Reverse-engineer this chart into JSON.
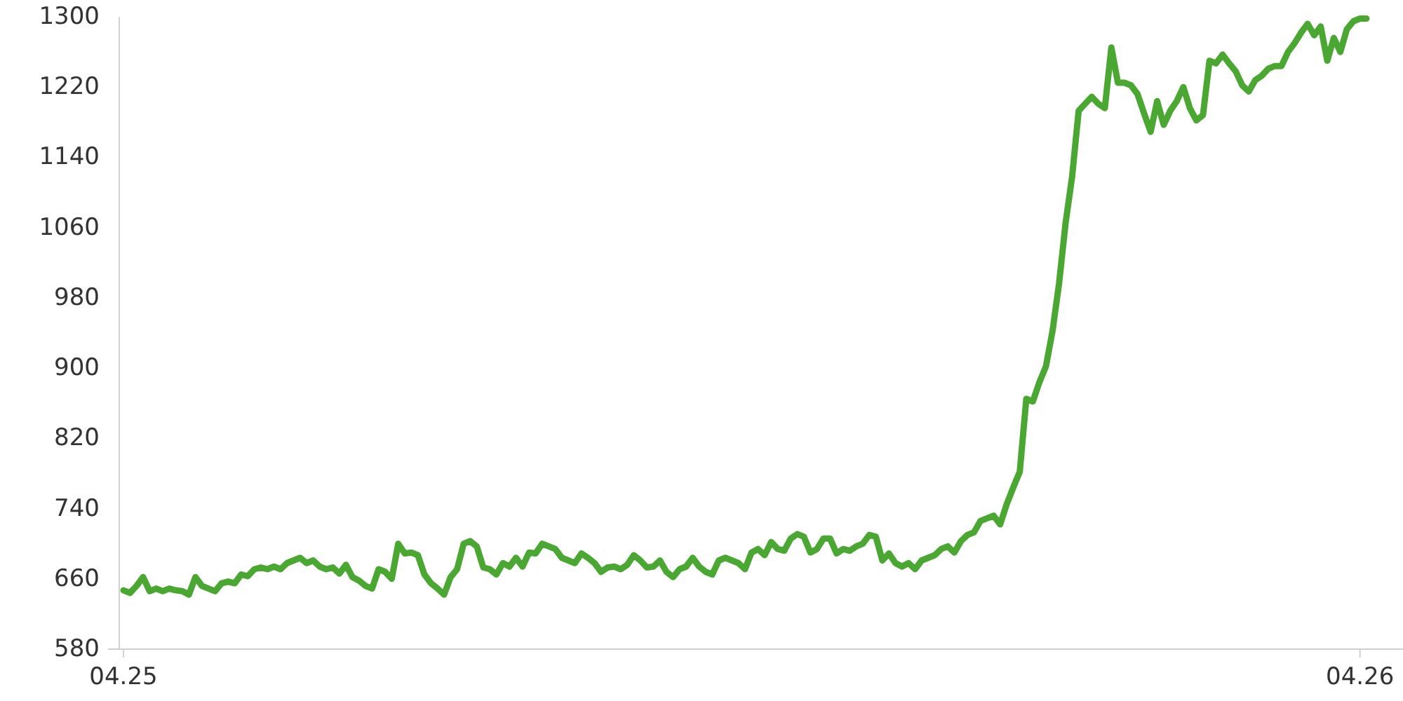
{
  "chart_data": {
    "type": "line",
    "ylim": [
      580,
      1300
    ],
    "yticks": [
      580,
      660,
      740,
      820,
      900,
      980,
      1060,
      1140,
      1220,
      1300
    ],
    "grid": false,
    "marker": "none",
    "line_style": "solid",
    "categories": [
      "04.25",
      null,
      null,
      null,
      null,
      null,
      null,
      null,
      null,
      null,
      null,
      null,
      null,
      null,
      null,
      null,
      null,
      null,
      null,
      null,
      null,
      null,
      null,
      null,
      null,
      null,
      null,
      null,
      null,
      null,
      null,
      null,
      null,
      null,
      null,
      null,
      null,
      null,
      null,
      null,
      null,
      null,
      null,
      null,
      null,
      null,
      null,
      null,
      null,
      null,
      null,
      null,
      null,
      null,
      null,
      null,
      null,
      null,
      null,
      null,
      null,
      null,
      null,
      null,
      null,
      null,
      null,
      null,
      null,
      null,
      null,
      null,
      null,
      null,
      null,
      null,
      null,
      null,
      null,
      null,
      null,
      null,
      null,
      null,
      null,
      null,
      null,
      null,
      null,
      null,
      null,
      null,
      null,
      null,
      null,
      null,
      null,
      null,
      null,
      null,
      null,
      null,
      null,
      null,
      null,
      null,
      null,
      null,
      null,
      null,
      null,
      null,
      null,
      null,
      null,
      null,
      null,
      null,
      null,
      null,
      null,
      null,
      null,
      null,
      null,
      null,
      null,
      null,
      null,
      null,
      null,
      null,
      null,
      null,
      null,
      null,
      null,
      null,
      null,
      null,
      null,
      null,
      null,
      null,
      null,
      null,
      null,
      null,
      null,
      null,
      null,
      null,
      null,
      null,
      null,
      null,
      null,
      null,
      null,
      null,
      null,
      null,
      null,
      null,
      null,
      null,
      null,
      null,
      null,
      null,
      null,
      null,
      null,
      null,
      null,
      null,
      null,
      null,
      null,
      null,
      null,
      null,
      null,
      null,
      null,
      null,
      null,
      null,
      null,
      "04.26",
      null
    ],
    "series": [
      {
        "color": "#4aa832",
        "values": [
          647,
          644,
          652,
          662,
          646,
          649,
          646,
          649,
          647,
          646,
          642,
          662,
          652,
          649,
          646,
          655,
          657,
          655,
          665,
          663,
          671,
          673,
          671,
          674,
          671,
          678,
          681,
          684,
          678,
          681,
          674,
          671,
          673,
          666,
          676,
          662,
          658,
          652,
          649,
          671,
          668,
          660,
          700,
          689,
          690,
          687,
          665,
          655,
          649,
          642,
          662,
          671,
          700,
          703,
          697,
          673,
          671,
          665,
          678,
          674,
          684,
          674,
          690,
          689,
          700,
          697,
          694,
          684,
          681,
          678,
          689,
          684,
          678,
          668,
          673,
          674,
          671,
          676,
          687,
          681,
          673,
          674,
          681,
          668,
          662,
          671,
          674,
          684,
          674,
          668,
          665,
          681,
          684,
          681,
          678,
          671,
          690,
          694,
          687,
          702,
          694,
          692,
          706,
          711,
          708,
          690,
          694,
          706,
          706,
          689,
          694,
          692,
          697,
          700,
          710,
          708,
          681,
          689,
          678,
          674,
          678,
          671,
          681,
          684,
          687,
          694,
          697,
          690,
          703,
          710,
          713,
          726,
          729,
          732,
          722,
          745,
          764,
          782,
          865,
          862,
          884,
          902,
          942,
          996,
          1065,
          1118,
          1193,
          1201,
          1209,
          1201,
          1196,
          1265,
          1225,
          1225,
          1222,
          1212,
          1190,
          1169,
          1204,
          1177,
          1193,
          1204,
          1220,
          1196,
          1182,
          1188,
          1250,
          1247,
          1257,
          1247,
          1238,
          1222,
          1215,
          1228,
          1233,
          1241,
          1244,
          1244,
          1260,
          1270,
          1282,
          1292,
          1279,
          1289,
          1250,
          1276,
          1260,
          1286,
          1295,
          1298,
          1298
        ]
      }
    ]
  }
}
